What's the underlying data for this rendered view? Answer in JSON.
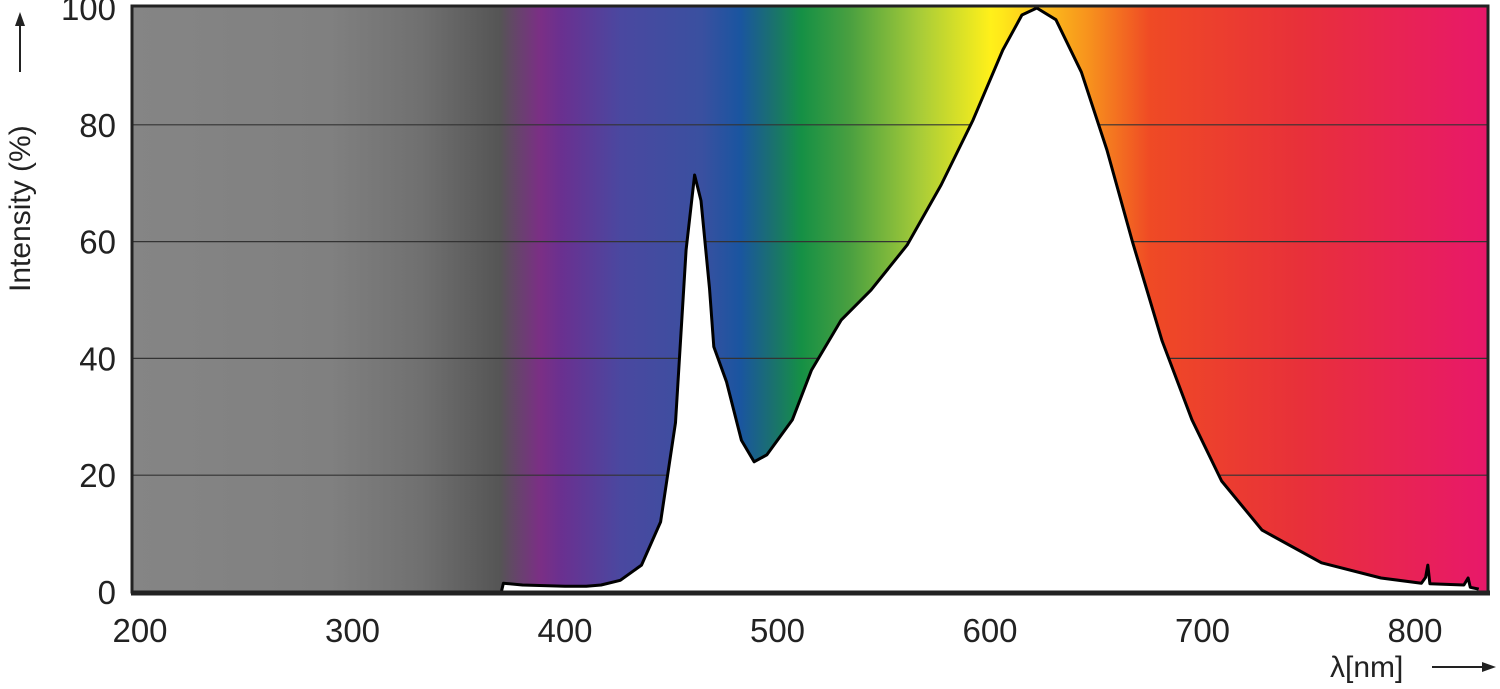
{
  "chart_data": {
    "type": "area",
    "title": "",
    "xlabel": "λ[nm]",
    "ylabel": "Intensity (%)",
    "xlim": [
      196,
      834
    ],
    "ylim": [
      0,
      100
    ],
    "xticks": [
      200,
      300,
      400,
      500,
      600,
      700,
      800
    ],
    "yticks": [
      0,
      20,
      40,
      60,
      80,
      100
    ],
    "grid": "horizontal",
    "curve_color": "#000000",
    "fill_under_curve": "#ffffff",
    "background_spectrum": [
      {
        "nm": 196,
        "color": "#858585"
      },
      {
        "nm": 289,
        "color": "#808080"
      },
      {
        "nm": 332,
        "color": "#707070"
      },
      {
        "nm": 369,
        "color": "#555555"
      },
      {
        "nm": 379,
        "color": "#6a4070"
      },
      {
        "nm": 388,
        "color": "#7b2f85"
      },
      {
        "nm": 398,
        "color": "#6a3090"
      },
      {
        "nm": 426,
        "color": "#4a48a0"
      },
      {
        "nm": 464,
        "color": "#3a50a0"
      },
      {
        "nm": 482,
        "color": "#1a55a0"
      },
      {
        "nm": 497,
        "color": "#1a7070"
      },
      {
        "nm": 511,
        "color": "#159045"
      },
      {
        "nm": 534,
        "color": "#4aa040"
      },
      {
        "nm": 567,
        "color": "#a8cc38"
      },
      {
        "nm": 600,
        "color": "#fff01a"
      },
      {
        "nm": 605,
        "color": "#ffe81a"
      },
      {
        "nm": 647,
        "color": "#f7901d"
      },
      {
        "nm": 675,
        "color": "#ef4a25"
      },
      {
        "nm": 746,
        "color": "#e8303a"
      },
      {
        "nm": 834,
        "color": "#e8186a"
      }
    ],
    "series": [
      {
        "x": [
          370,
          371,
          380,
          390,
          400,
          410,
          417,
          426,
          436,
          445,
          452,
          457,
          461,
          464,
          468,
          470,
          476,
          483,
          489,
          495,
          507,
          516,
          530,
          544,
          561,
          577,
          592,
          606,
          615,
          622,
          631,
          643,
          655,
          667,
          681,
          695,
          709,
          728,
          756,
          784,
          803,
          805,
          806,
          807,
          815,
          823,
          825,
          826,
          830
        ],
        "y": [
          0,
          1.5,
          1.2,
          1.1,
          1.0,
          1.0,
          1.2,
          2,
          4.6,
          12,
          29,
          58.6,
          71.4,
          67,
          52,
          42,
          36,
          26,
          22.3,
          23.5,
          29.5,
          38,
          46.6,
          51.7,
          59.4,
          69.7,
          80.8,
          92.8,
          98.8,
          100,
          98,
          89,
          75.7,
          60,
          43,
          29.5,
          19,
          10.6,
          5,
          2.4,
          1.5,
          2.5,
          4.6,
          1.4,
          1.3,
          1.2,
          2.4,
          0.8,
          0.5
        ]
      }
    ]
  }
}
